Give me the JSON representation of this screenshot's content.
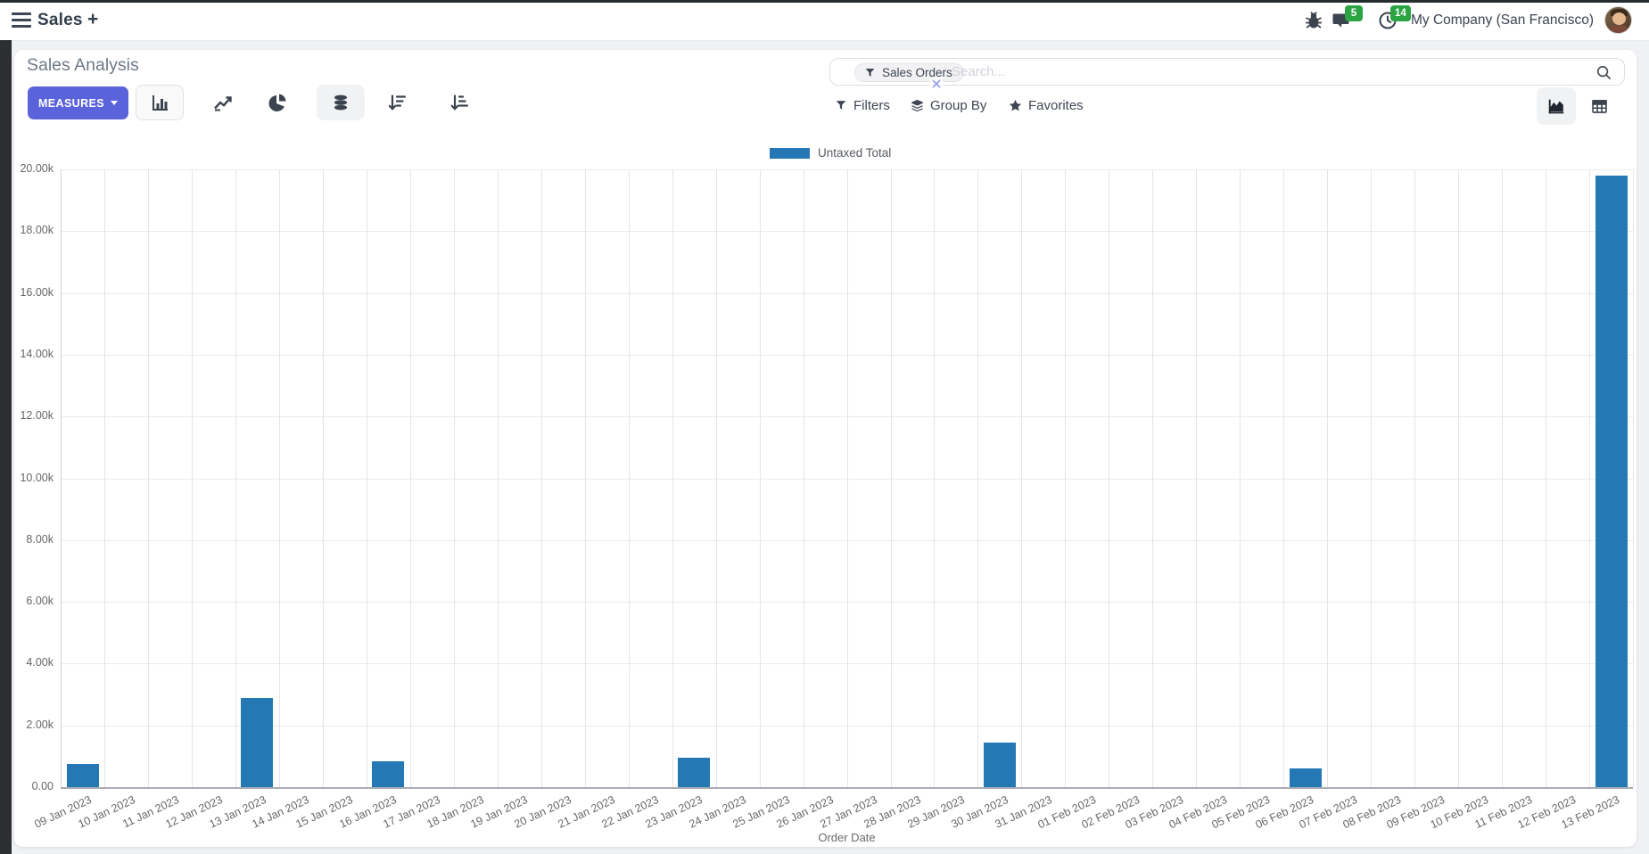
{
  "header": {
    "app_name": "Sales",
    "new_tab_label": "+",
    "messages_badge": "5",
    "activities_badge": "14",
    "company": "My Company (San Francisco)"
  },
  "control_panel": {
    "title": "Sales Analysis",
    "measures_label": "MEASURES",
    "search": {
      "facet": "Sales Orders",
      "placeholder": "Search..."
    },
    "filters_label": "Filters",
    "group_by_label": "Group By",
    "favorites_label": "Favorites"
  },
  "colors": {
    "primary_button": "#5a63da",
    "bar": "#2479b5",
    "badge_green": "#2ca443"
  },
  "icons": {
    "menu-icon": "≡",
    "plus-icon": "+",
    "bug-icon": "bug",
    "chat-icon": "speech-bubble",
    "clock-icon": "clock",
    "search-icon": "magnifier",
    "filter-icon": "funnel",
    "group-by-icon": "layers",
    "favorites-icon": "star",
    "bar-chart-icon": "bars",
    "line-chart-icon": "zigzag-arrow",
    "pie-chart-icon": "pie",
    "stacked-icon": "database",
    "sort-desc-icon": "arrow+decreasing-bars",
    "sort-asc-icon": "arrow+increasing-bars",
    "area-chart-icon": "area",
    "pivot-view-icon": "table",
    "close-icon": "x",
    "caret-down-icon": "▾"
  },
  "chart_data": {
    "type": "bar",
    "title": "Sales Analysis",
    "xlabel": "Order Date",
    "ylabel": "",
    "legend": [
      "Untaxed Total"
    ],
    "legend_position": "top-center",
    "grid": true,
    "ylim": [
      0,
      20000
    ],
    "y_tick_step": 2000,
    "y_tick_labels": [
      "0.00",
      "2.00k",
      "4.00k",
      "6.00k",
      "8.00k",
      "10.00k",
      "12.00k",
      "14.00k",
      "16.00k",
      "18.00k",
      "20.00k"
    ],
    "categories": [
      "09 Jan 2023",
      "10 Jan 2023",
      "11 Jan 2023",
      "12 Jan 2023",
      "13 Jan 2023",
      "14 Jan 2023",
      "15 Jan 2023",
      "16 Jan 2023",
      "17 Jan 2023",
      "18 Jan 2023",
      "19 Jan 2023",
      "20 Jan 2023",
      "21 Jan 2023",
      "22 Jan 2023",
      "23 Jan 2023",
      "24 Jan 2023",
      "25 Jan 2023",
      "26 Jan 2023",
      "27 Jan 2023",
      "28 Jan 2023",
      "29 Jan 2023",
      "30 Jan 2023",
      "31 Jan 2023",
      "01 Feb 2023",
      "02 Feb 2023",
      "03 Feb 2023",
      "04 Feb 2023",
      "05 Feb 2023",
      "06 Feb 2023",
      "07 Feb 2023",
      "08 Feb 2023",
      "09 Feb 2023",
      "10 Feb 2023",
      "11 Feb 2023",
      "12 Feb 2023",
      "13 Feb 2023"
    ],
    "series": [
      {
        "name": "Untaxed Total",
        "values": [
          750,
          0,
          0,
          0,
          2900,
          0,
          0,
          850,
          0,
          0,
          0,
          0,
          0,
          0,
          950,
          0,
          0,
          0,
          0,
          0,
          0,
          1450,
          0,
          0,
          0,
          0,
          0,
          0,
          600,
          0,
          0,
          0,
          0,
          0,
          0,
          19800
        ]
      }
    ]
  }
}
